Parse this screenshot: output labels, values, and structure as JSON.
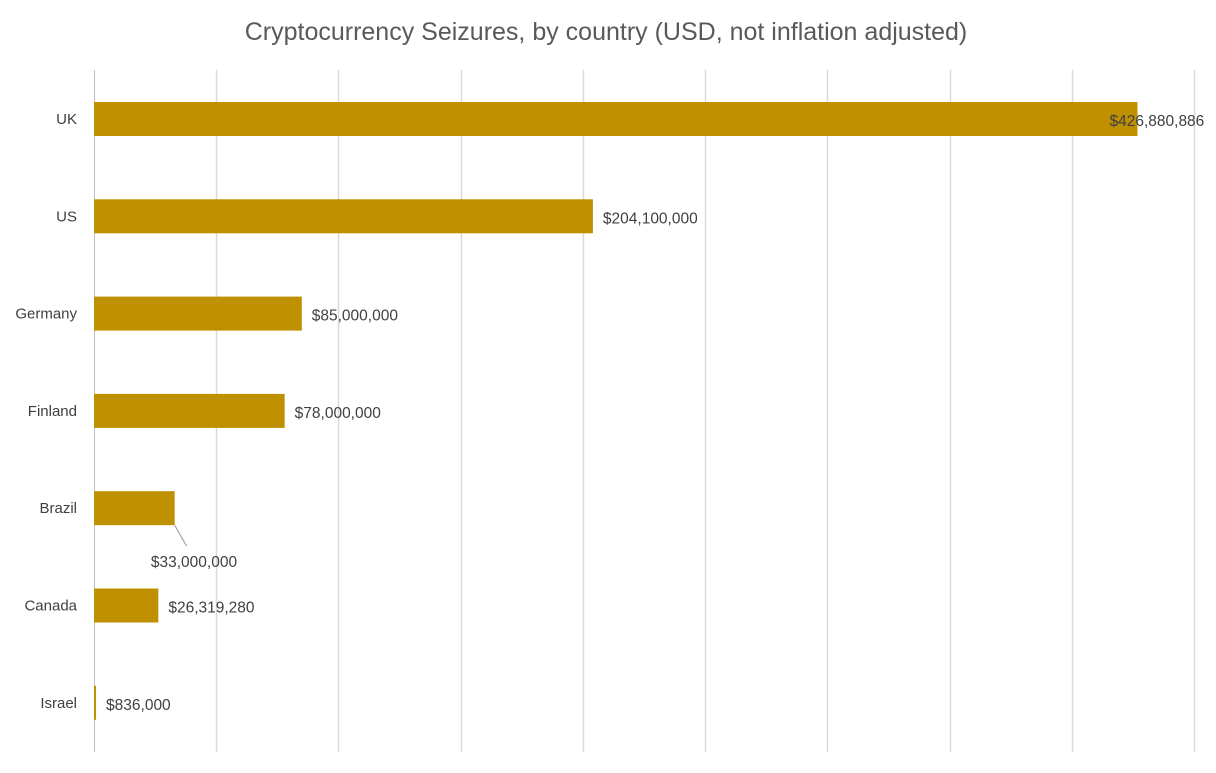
{
  "chart_data": {
    "type": "bar",
    "orientation": "horizontal",
    "title": "Cryptocurrency Seizures, by country (USD, not inflation adjusted)",
    "xlabel": "",
    "ylabel": "",
    "categories": [
      "UK",
      "US",
      "Germany",
      "Finland",
      "Brazil",
      "Canada",
      "Israel"
    ],
    "values": [
      426880886,
      204100000,
      85000000,
      78000000,
      33000000,
      26319280,
      836000
    ],
    "data_labels": [
      "$426,880,886",
      "$204,100,000",
      "$85,000,000",
      "$78,000,000",
      "$33,000,000",
      "$26,319,280",
      "$836,000"
    ],
    "xlim": [
      0,
      450000000
    ],
    "gridlines": true,
    "legend": "none",
    "bar_color": "#BF9000"
  }
}
